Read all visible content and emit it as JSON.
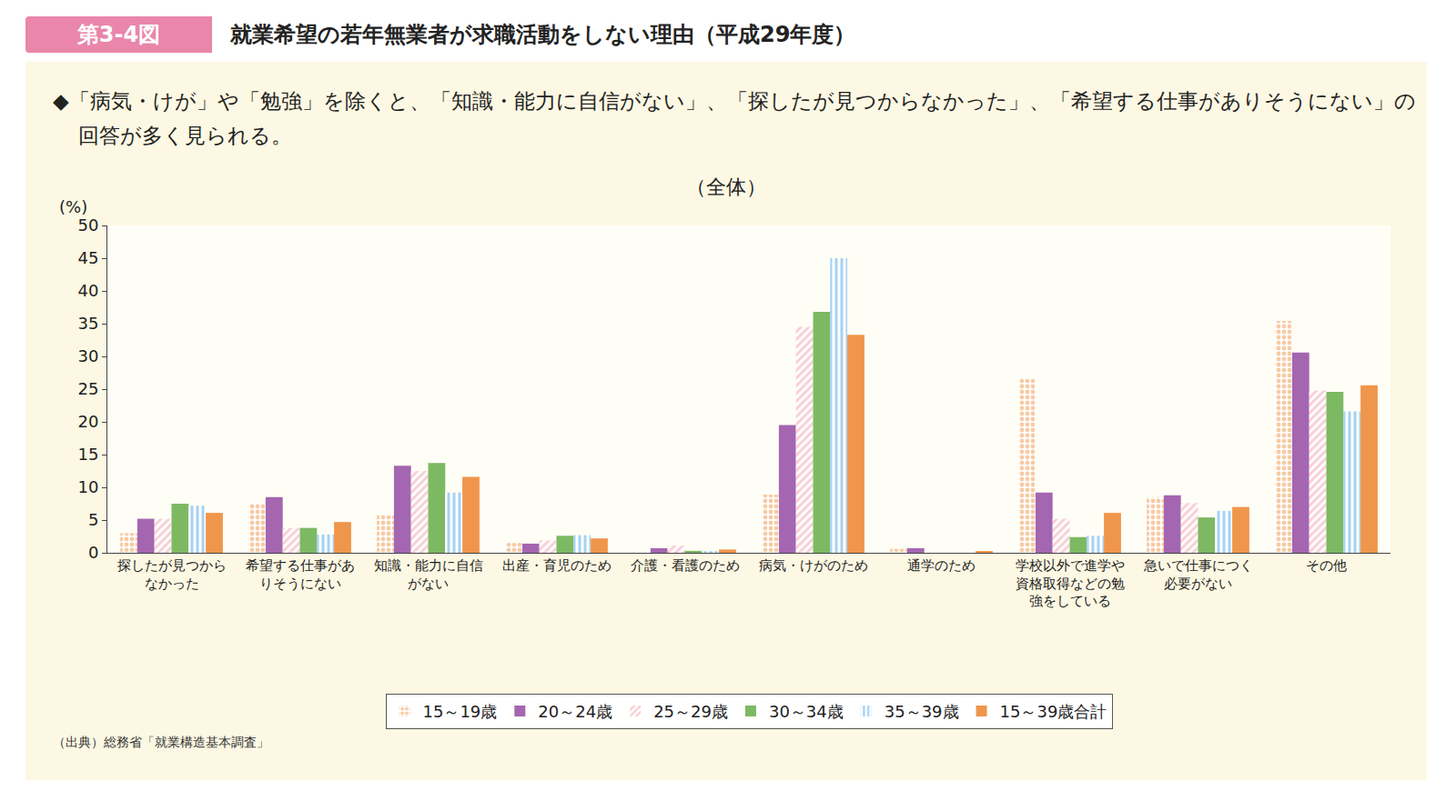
{
  "chart_data": {
    "type": "bar",
    "figure_label": "第3-4図",
    "title": "就業希望の若年無業者が求職活動をしない理由（平成29年度）",
    "subtitle": "◆「病気・けが」や「勉強」を除くと、「知識・能力に自信がない」、「探したが見つからなかった」、「希望する仕事がありそうにない」の回答が多く見られる。",
    "panel_title": "（全体）",
    "y_label": "(%)",
    "source": "（出典）総務省「就業構造基本調査」",
    "categories": [
      "探したが見つからなかった",
      "希望する仕事がありそうにない",
      "知識・能力に自信がない",
      "出産・育児のため",
      "介護・看護のため",
      "病気・けがのため",
      "通学のため",
      "学校以外で進学や資格取得などの勉強をしている",
      "急いで仕事につく必要がない",
      "その他"
    ],
    "series": [
      {
        "name": "15～19歳",
        "color": "#f0954a",
        "marker": "dot",
        "values": [
          3.0,
          7.5,
          5.8,
          1.5,
          0.1,
          8.9,
          0.6,
          26.6,
          8.5,
          35.4
        ]
      },
      {
        "name": "20～24歳",
        "color": "#a466b0",
        "marker": "solid",
        "values": [
          5.2,
          8.5,
          13.3,
          1.4,
          0.7,
          19.5,
          0.7,
          9.2,
          8.8,
          30.6
        ]
      },
      {
        "name": "25～29歳",
        "color": "#f2a0ab",
        "marker": "diagonal",
        "values": [
          5.2,
          3.8,
          12.5,
          1.9,
          1.1,
          34.5,
          0,
          5.2,
          7.6,
          24.8
        ]
      },
      {
        "name": "30～34歳",
        "color": "#7db963",
        "marker": "solid",
        "values": [
          7.5,
          3.8,
          13.7,
          2.6,
          0.3,
          36.8,
          0,
          2.4,
          5.4,
          24.6
        ]
      },
      {
        "name": "35～39歳",
        "color": "#4ea3e6",
        "marker": "vertical",
        "values": [
          7.2,
          2.8,
          9.2,
          2.7,
          0.2,
          45.0,
          0,
          2.6,
          6.4,
          21.6
        ]
      },
      {
        "name": "15～39歳合計",
        "color": "#f0964c",
        "marker": "solid",
        "values": [
          6.1,
          4.7,
          11.6,
          2.2,
          0.5,
          33.3,
          0.2,
          6.1,
          7.0,
          25.6
        ]
      }
    ],
    "ylim": [
      0,
      50
    ],
    "yticks": [
      0,
      5,
      10,
      15,
      20,
      25,
      30,
      35,
      40,
      45,
      50
    ],
    "grid": false,
    "legend": "bottom",
    "data_labels": false
  }
}
